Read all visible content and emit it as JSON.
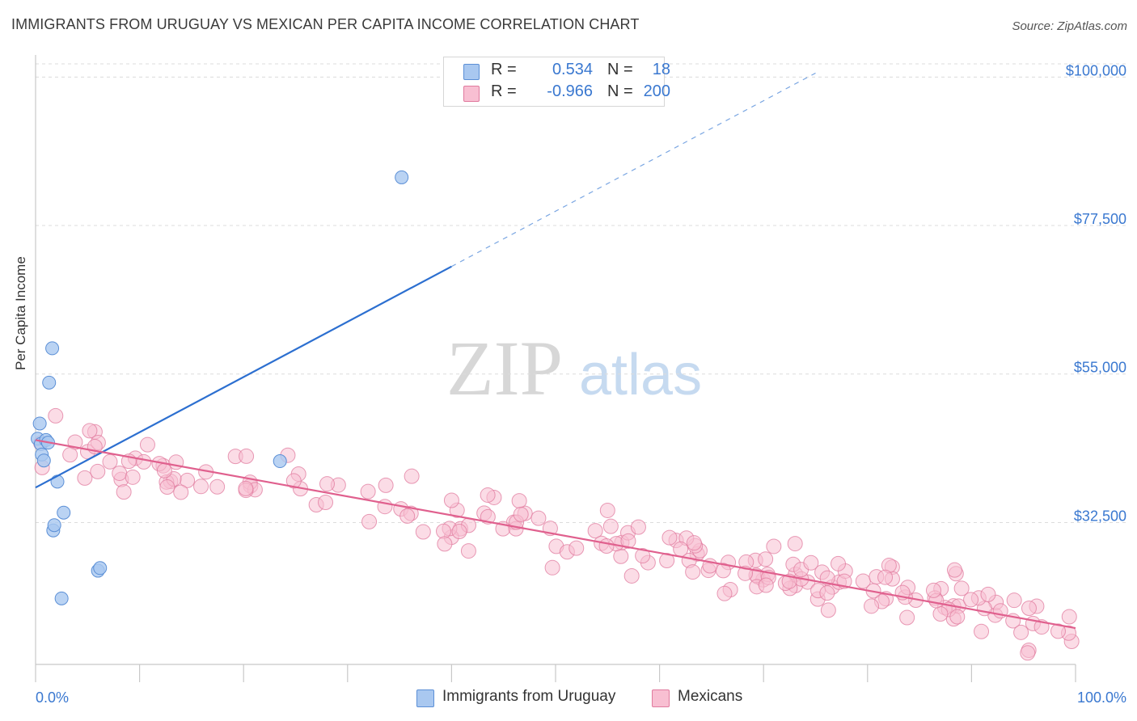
{
  "title": "IMMIGRANTS FROM URUGUAY VS MEXICAN PER CAPITA INCOME CORRELATION CHART",
  "source": "Source: ZipAtlas.com",
  "watermark": {
    "zip": "ZIP",
    "atlas": "atlas"
  },
  "legend": {
    "rows": [
      {
        "r_label": "R =",
        "r_value": "0.534",
        "n_label": "N =",
        "n_value": "18",
        "color": "#a9c8f0",
        "edge": "#5b8fd6"
      },
      {
        "r_label": "R =",
        "r_value": "-0.966",
        "n_label": "N =",
        "n_value": "200",
        "color": "#f8bfd2",
        "edge": "#e07a9e"
      }
    ]
  },
  "bottom_legend": {
    "series1": "Immigrants from Uruguay",
    "series2": "Mexicans"
  },
  "chart_data": {
    "type": "scatter",
    "title": "IMMIGRANTS FROM URUGUAY VS MEXICAN PER CAPITA INCOME CORRELATION CHART",
    "xlabel": "",
    "ylabel": "Per Capita Income",
    "x_tick_labels": [
      "0.0%",
      "100.0%"
    ],
    "y_tick_labels": [
      "$32,500",
      "$55,000",
      "$77,500",
      "$100,000"
    ],
    "y_ticks": [
      32500,
      55000,
      77500,
      100000
    ],
    "xlim": [
      0,
      100
    ],
    "ylim": [
      11000,
      102000
    ],
    "grid": true,
    "series": [
      {
        "name": "Immigrants from Uruguay",
        "color": "#5b8fd6",
        "fill": "#a9c8f0",
        "points": [
          [
            0.2,
            45200
          ],
          [
            0.4,
            47500
          ],
          [
            0.5,
            44400
          ],
          [
            0.6,
            42800
          ],
          [
            0.8,
            41900
          ],
          [
            1.0,
            45000
          ],
          [
            1.2,
            44600
          ],
          [
            1.3,
            53700
          ],
          [
            1.6,
            58900
          ],
          [
            1.7,
            31300
          ],
          [
            1.8,
            32100
          ],
          [
            2.1,
            38700
          ],
          [
            2.5,
            21000
          ],
          [
            2.7,
            34000
          ],
          [
            6.0,
            25200
          ],
          [
            6.2,
            25600
          ],
          [
            23.5,
            41800
          ],
          [
            35.2,
            84800
          ]
        ],
        "trend": {
          "x0": 0,
          "y0": 37800,
          "x1": 40,
          "y1": 71300,
          "dashed_to_x": 75,
          "dashed_to_y": 100600
        }
      },
      {
        "name": "Mexicans",
        "color": "#e07a9e",
        "fill": "#f8bfd2",
        "trend": {
          "x0": 0,
          "y0": 45000,
          "x1": 100,
          "y1": 16500
        }
      }
    ]
  }
}
